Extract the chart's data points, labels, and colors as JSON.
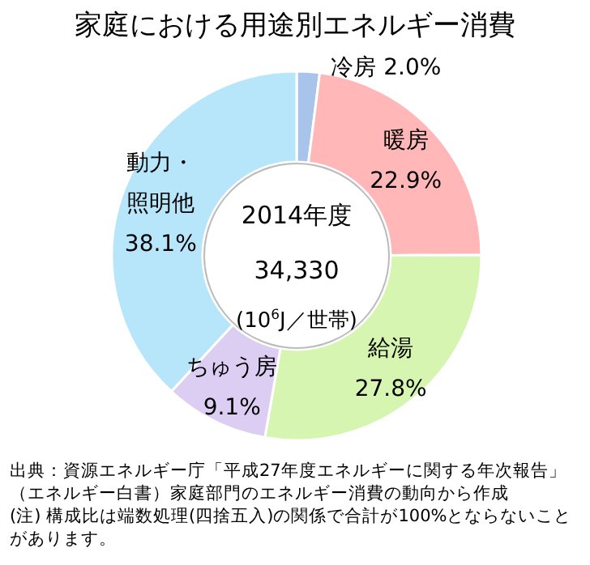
{
  "chart_data": {
    "type": "donut",
    "title": "家庭における用途別エネルギー消費",
    "categories": [
      "冷房",
      "暖房",
      "給湯",
      "ちゅう房",
      "動力・照明他"
    ],
    "values": [
      2.0,
      22.9,
      27.8,
      9.1,
      38.1
    ],
    "colors": [
      "#a9c4eb",
      "#ffb7b7",
      "#d6f5b0",
      "#dccdf2",
      "#b7e6fb"
    ],
    "value_labels": [
      "2.0%",
      "22.9%",
      "27.8%",
      "9.1%",
      "38.1%"
    ],
    "annotations": [
      "2014年度",
      "34,330",
      "(10$^{6}$J／世帯)",
      "出典：資源エネルギー庁「平成27年度エネルギーに関する年次報告」（エネルギー白書）家庭部門のエネルギー消費の動向から作成",
      "(注) 構成比は端数処理(四捨五入)の関係で合計が100%とならないことがあります。"
    ]
  }
}
